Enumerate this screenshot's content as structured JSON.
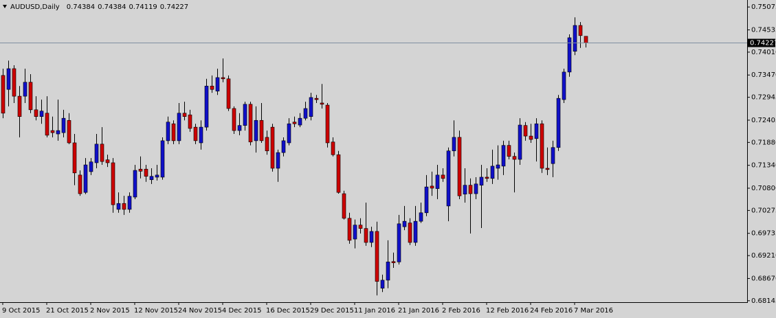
{
  "chart_data": {
    "type": "candlestick",
    "title": "AUDUSD,Daily",
    "categories": [
      "9 Oct 2015",
      null,
      null,
      null,
      null,
      null,
      null,
      null,
      "21 Oct 2015",
      null,
      null,
      null,
      null,
      null,
      null,
      null,
      "2 Nov 2015",
      null,
      null,
      null,
      null,
      null,
      null,
      null,
      "12 Nov 2015",
      null,
      null,
      null,
      null,
      null,
      null,
      null,
      "24 Nov 2015",
      null,
      null,
      null,
      null,
      null,
      null,
      null,
      "4 Dec 2015",
      null,
      null,
      null,
      null,
      null,
      null,
      null,
      "16 Dec 2015",
      null,
      null,
      null,
      null,
      null,
      null,
      null,
      "29 Dec 2015",
      null,
      null,
      null,
      null,
      null,
      null,
      null,
      "11 Jan 2016",
      null,
      null,
      null,
      null,
      null,
      null,
      null,
      "21 Jan 2016",
      null,
      null,
      null,
      null,
      null,
      null,
      null,
      "2 Feb 2016",
      null,
      null,
      null,
      null,
      null,
      null,
      null,
      "12 Feb 2016",
      null,
      null,
      null,
      null,
      null,
      null,
      null,
      "24 Feb 2016",
      null,
      null,
      null,
      null,
      null,
      null,
      null,
      "7 Mar 2016",
      null,
      null
    ],
    "open": [
      0.7346,
      0.7313,
      0.7362,
      0.7297,
      0.7297,
      0.733,
      0.7265,
      0.7249,
      0.7257,
      0.7216,
      0.7208,
      0.7211,
      0.724,
      0.7187,
      0.7111,
      0.707,
      0.7119,
      0.714,
      0.7184,
      0.7147,
      0.714,
      0.703,
      0.7044,
      0.703,
      0.7059,
      0.7125,
      0.7125,
      0.71,
      0.7106,
      0.7106,
      0.7192,
      0.7232,
      0.7192,
      0.7257,
      0.7253,
      0.7224,
      0.7187,
      0.7224,
      0.7321,
      0.7309,
      0.7341,
      0.7338,
      0.7268,
      0.7216,
      0.7228,
      0.7278,
      0.7192,
      0.724,
      0.72,
      0.7224,
      0.7127,
      0.7164,
      0.7187,
      0.7236,
      0.7229,
      0.7245,
      0.7249,
      0.7292,
      0.7281,
      0.7276,
      0.7189,
      0.7159,
      0.7067,
      0.7009,
      0.696,
      0.6993,
      0.6985,
      0.6952,
      0.6978,
      0.6844,
      0.6863,
      0.6907,
      0.6906,
      0.6989,
      0.6998,
      0.6952,
      0.7002,
      0.7022,
      0.7085,
      0.7079,
      0.7111,
      0.7038,
      0.7168,
      0.72,
      0.7066,
      0.7087,
      0.7067,
      0.7087,
      0.7106,
      0.7103,
      0.7127,
      0.7132,
      0.7181,
      0.7155,
      0.7148,
      0.7228,
      0.7203,
      0.7197,
      0.7232,
      0.7127,
      0.7138,
      0.7176,
      0.7289,
      0.7354,
      0.7403,
      0.7464,
      0.74384
    ],
    "high": [
      0.7362,
      0.7381,
      0.737,
      0.7321,
      0.7362,
      0.7349,
      0.7297,
      0.7289,
      0.7297,
      0.7249,
      0.7289,
      0.7265,
      0.7257,
      0.7208,
      0.7122,
      0.7151,
      0.7151,
      0.7208,
      0.7224,
      0.7159,
      0.7151,
      0.707,
      0.7062,
      0.707,
      0.7135,
      0.7155,
      0.7135,
      0.7127,
      0.7135,
      0.72,
      0.7249,
      0.724,
      0.7281,
      0.7284,
      0.7265,
      0.7232,
      0.724,
      0.7338,
      0.7346,
      0.7362,
      0.7386,
      0.7346,
      0.7273,
      0.7257,
      0.7284,
      0.7284,
      0.7273,
      0.7281,
      0.7216,
      0.7232,
      0.7171,
      0.72,
      0.7245,
      0.7249,
      0.7257,
      0.7284,
      0.7305,
      0.73,
      0.7326,
      0.7281,
      0.72,
      0.7168,
      0.7074,
      0.7022,
      0.7006,
      0.7009,
      0.7046,
      0.6989,
      0.7001,
      0.6876,
      0.6957,
      0.6928,
      0.7017,
      0.7038,
      0.7009,
      0.7038,
      0.7046,
      0.7111,
      0.7119,
      0.7135,
      0.7127,
      0.7176,
      0.724,
      0.7216,
      0.7127,
      0.7103,
      0.7106,
      0.7135,
      0.7127,
      0.7171,
      0.7181,
      0.7192,
      0.7192,
      0.7164,
      0.7245,
      0.7236,
      0.7232,
      0.7245,
      0.724,
      0.7176,
      0.7192,
      0.73,
      0.7362,
      0.7443,
      0.7483,
      0.7472,
      0.74384
    ],
    "low": [
      0.7245,
      0.7273,
      0.7281,
      0.72,
      0.7281,
      0.7257,
      0.724,
      0.7232,
      0.72,
      0.72,
      0.7192,
      0.72,
      0.7184,
      0.7087,
      0.7062,
      0.7066,
      0.7111,
      0.7127,
      0.7135,
      0.713,
      0.7022,
      0.7022,
      0.7017,
      0.7022,
      0.7054,
      0.7103,
      0.7095,
      0.709,
      0.7098,
      0.71,
      0.7184,
      0.7184,
      0.7184,
      0.724,
      0.7213,
      0.7184,
      0.7171,
      0.7216,
      0.7305,
      0.73,
      0.733,
      0.7262,
      0.7208,
      0.7205,
      0.7216,
      0.7181,
      0.7164,
      0.7187,
      0.7159,
      0.7119,
      0.7095,
      0.7155,
      0.7181,
      0.7224,
      0.7224,
      0.724,
      0.724,
      0.7281,
      0.7268,
      0.7176,
      0.7155,
      0.7067,
      0.7006,
      0.6949,
      0.6938,
      0.6973,
      0.6944,
      0.6941,
      0.6827,
      0.6835,
      0.6844,
      0.6892,
      0.69,
      0.6981,
      0.6946,
      0.6944,
      0.6998,
      0.7014,
      0.7062,
      0.7054,
      0.7095,
      0.7002,
      0.7155,
      0.7054,
      0.7046,
      0.6973,
      0.7054,
      0.6986,
      0.7095,
      0.709,
      0.71,
      0.7111,
      0.7148,
      0.707,
      0.7135,
      0.7192,
      0.7187,
      0.7143,
      0.7116,
      0.7111,
      0.7106,
      0.7168,
      0.7281,
      0.7343,
      0.7394,
      0.7411,
      0.74119
    ],
    "close": [
      0.7257,
      0.7362,
      0.7297,
      0.7249,
      0.733,
      0.7265,
      0.7249,
      0.7262,
      0.7205,
      0.7211,
      0.7216,
      0.7245,
      0.7187,
      0.7116,
      0.7067,
      0.7135,
      0.7142,
      0.7184,
      0.7143,
      0.714,
      0.7041,
      0.7044,
      0.703,
      0.7061,
      0.7122,
      0.712,
      0.7108,
      0.7108,
      0.7111,
      0.7192,
      0.7236,
      0.7192,
      0.7257,
      0.7249,
      0.7221,
      0.7192,
      0.7224,
      0.7321,
      0.7313,
      0.7341,
      0.7338,
      0.7268,
      0.7216,
      0.7228,
      0.7278,
      0.7189,
      0.724,
      0.7192,
      0.7168,
      0.7127,
      0.7164,
      0.7192,
      0.7232,
      0.7232,
      0.7245,
      0.7268,
      0.7294,
      0.7289,
      0.7278,
      0.7187,
      0.7159,
      0.707,
      0.7009,
      0.6957,
      0.6993,
      0.6985,
      0.6952,
      0.6978,
      0.686,
      0.6863,
      0.6906,
      0.6904,
      0.6996,
      0.7002,
      0.6952,
      0.7002,
      0.7022,
      0.7083,
      0.708,
      0.7111,
      0.7103,
      0.7168,
      0.72,
      0.7062,
      0.7087,
      0.7067,
      0.709,
      0.7106,
      0.7103,
      0.7132,
      0.7135,
      0.7181,
      0.7155,
      0.7148,
      0.7229,
      0.7203,
      0.7195,
      0.7232,
      0.7127,
      0.7124,
      0.7176,
      0.7292,
      0.7354,
      0.7435,
      0.7464,
      0.744,
      0.74227
    ],
    "up_color": "#1010c8",
    "down_color": "#cc0000",
    "ylim": [
      0.6811,
      0.7524
    ],
    "yticks": [
      0.75075,
      0.74535,
      {
        "value": 0.7401,
        "label": "0.74010"
      },
      {
        "value": 0.7347,
        "label": "0.73470"
      },
      0.72945,
      0.72405,
      {
        "value": 0.7188,
        "label": "0.71880"
      },
      {
        "value": 0.7134,
        "label": "0.71340"
      },
      {
        "value": 0.708,
        "label": "0.70800"
      },
      0.70275,
      0.69735,
      {
        "value": 0.6921,
        "label": "0.69210"
      },
      {
        "value": 0.6867,
        "label": "0.68670"
      },
      0.68145
    ]
  }
}
